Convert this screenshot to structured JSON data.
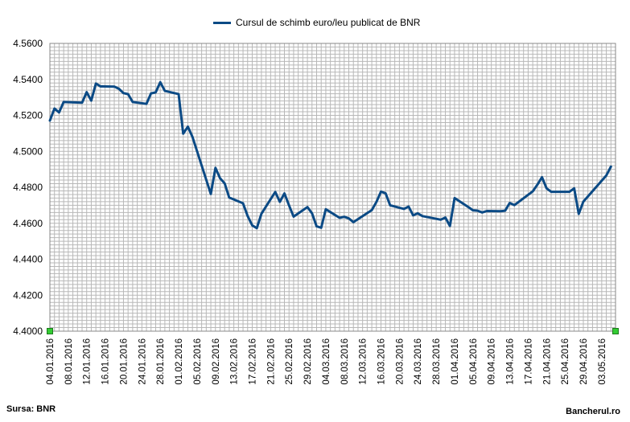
{
  "chart_data": {
    "type": "line",
    "title": "",
    "xlabel": "",
    "ylabel": "",
    "ylim": [
      4.4,
      4.56
    ],
    "ytick_step": 0.002,
    "y_ticks": [
      "4.4000",
      "4.4200",
      "4.4400",
      "4.4600",
      "4.4800",
      "4.5000",
      "4.5200",
      "4.5400",
      "4.5600"
    ],
    "x_tick_labels": [
      "04.01.2016",
      "08.01.2016",
      "12.01.2016",
      "16.01.2016",
      "20.01.2016",
      "24.01.2016",
      "28.01.2016",
      "01.02.2016",
      "05.02.2016",
      "09.02.2016",
      "13.02.2016",
      "17.02.2016",
      "21.02.2016",
      "25.02.2016",
      "29.02.2016",
      "04.03.2016",
      "08.03.2016",
      "12.03.2016",
      "16.03.2016",
      "20.03.2016",
      "24.03.2016",
      "28.03.2016",
      "01.04.2016",
      "05.04.2016",
      "09.04.2016",
      "13.04.2016",
      "17.04.2016",
      "21.04.2016",
      "25.04.2016",
      "29.04.2016",
      "03.05.2016"
    ],
    "grid": true,
    "legend": "top-center",
    "series": [
      {
        "name": "Cursul de schimb euro/leu publicat de BNR",
        "color": "#0b4a85",
        "x": [
          "04.01.2016",
          "05.01.2016",
          "06.01.2016",
          "07.01.2016",
          "11.01.2016",
          "12.01.2016",
          "13.01.2016",
          "14.01.2016",
          "15.01.2016",
          "18.01.2016",
          "19.01.2016",
          "20.01.2016",
          "21.01.2016",
          "22.01.2016",
          "25.01.2016",
          "26.01.2016",
          "27.01.2016",
          "28.01.2016",
          "29.01.2016",
          "01.02.2016",
          "02.02.2016",
          "03.02.2016",
          "04.02.2016",
          "08.02.2016",
          "09.02.2016",
          "10.02.2016",
          "11.02.2016",
          "12.02.2016",
          "15.02.2016",
          "16.02.2016",
          "17.02.2016",
          "18.02.2016",
          "19.02.2016",
          "22.02.2016",
          "23.02.2016",
          "24.02.2016",
          "25.02.2016",
          "26.02.2016",
          "29.02.2016",
          "01.03.2016",
          "02.03.2016",
          "03.03.2016",
          "04.03.2016",
          "07.03.2016",
          "08.03.2016",
          "09.03.2016",
          "10.03.2016",
          "14.03.2016",
          "15.03.2016",
          "16.03.2016",
          "17.03.2016",
          "18.03.2016",
          "21.03.2016",
          "22.03.2016",
          "23.03.2016",
          "24.03.2016",
          "25.03.2016",
          "29.03.2016",
          "30.03.2016",
          "31.03.2016",
          "01.04.2016",
          "04.04.2016",
          "05.04.2016",
          "06.04.2016",
          "07.04.2016",
          "08.04.2016",
          "11.04.2016",
          "12.04.2016",
          "13.04.2016",
          "14.04.2016",
          "18.04.2016",
          "19.04.2016",
          "20.04.2016",
          "21.04.2016",
          "22.04.2016",
          "26.04.2016",
          "27.04.2016",
          "28.04.2016",
          "29.04.2016",
          "04.05.2016",
          "05.05.2016"
        ],
        "values": [
          4.5171,
          4.5238,
          4.5216,
          4.5274,
          4.527,
          4.5329,
          4.5282,
          4.5377,
          4.5361,
          4.536,
          4.5348,
          4.5324,
          4.5318,
          4.5274,
          4.5264,
          4.5322,
          4.5328,
          4.5384,
          4.5336,
          4.5318,
          4.5098,
          4.5137,
          4.508,
          4.4763,
          4.4908,
          4.485,
          4.4822,
          4.4743,
          4.4711,
          4.464,
          4.4588,
          4.4573,
          4.4653,
          4.4774,
          4.4719,
          4.4766,
          4.47,
          4.4637,
          4.469,
          4.4655,
          4.4583,
          4.4575,
          4.4678,
          4.463,
          4.4636,
          4.4627,
          4.4606,
          4.4673,
          4.4718,
          4.4776,
          4.4767,
          4.47,
          4.468,
          4.4693,
          4.4644,
          4.4655,
          4.464,
          4.462,
          4.4632,
          4.4585,
          4.474,
          4.469,
          4.4672,
          4.467,
          4.466,
          4.4668,
          4.4667,
          4.467,
          4.4713,
          4.4701,
          4.4777,
          4.4814,
          4.4856,
          4.4794,
          4.4775,
          4.4775,
          4.4794,
          4.4652,
          4.472,
          4.4866,
          4.4915
        ]
      }
    ]
  },
  "footer": {
    "source": "Sursa: BNR",
    "brand": "Bancherul.ro"
  }
}
